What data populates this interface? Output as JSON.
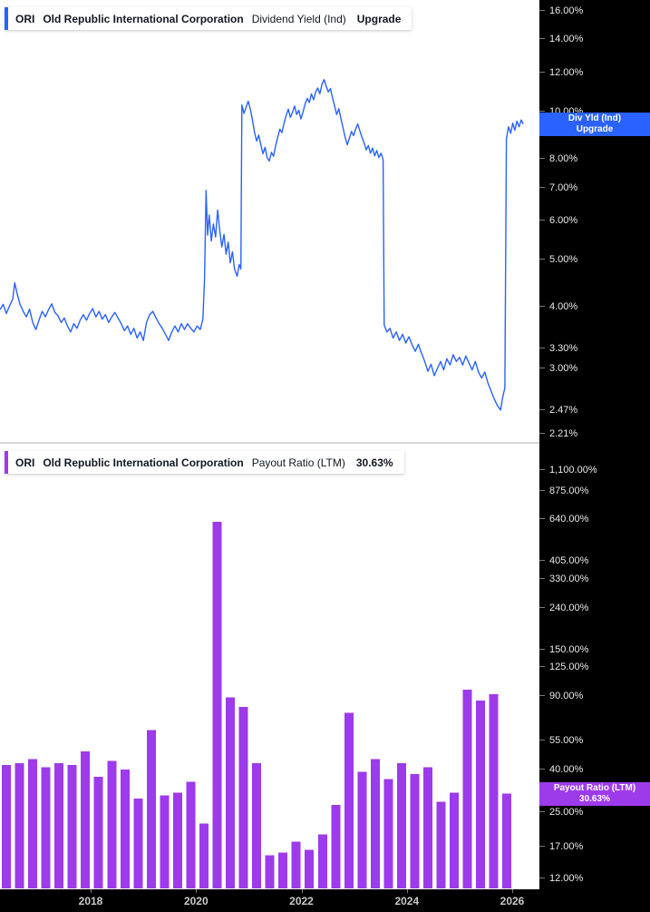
{
  "colors": {
    "line": "#2962FF",
    "bar": "#9D3BEB",
    "axis_bg": "#000000",
    "tick_text": "#E9E9E9",
    "year_text": "#C9C9C9",
    "background": "#FFFFFF"
  },
  "panels": [
    {
      "legend": {
        "ticker": "ORI",
        "company": "Old Republic International Corporation",
        "indicator": "Dividend Yield (Ind)",
        "value": "Upgrade"
      },
      "badge": {
        "line1": "Div Yld (Ind)",
        "line2": "Upgrade"
      }
    },
    {
      "legend": {
        "ticker": "ORI",
        "company": "Old Republic International Corporation",
        "indicator": "Payout Ratio (LTM)",
        "value": "30.63%"
      },
      "badge": {
        "line1": "Payout Ratio (LTM)",
        "line2": "30.63%"
      }
    }
  ],
  "x_axis": {
    "years": [
      {
        "v": 2018,
        "label": "2018"
      },
      {
        "v": 2020,
        "label": "2020"
      },
      {
        "v": 2022,
        "label": "2022"
      },
      {
        "v": 2024,
        "label": "2024"
      },
      {
        "v": 2026,
        "label": "2026"
      }
    ]
  },
  "chart_data": [
    {
      "type": "line",
      "title": "ORI Dividend Yield (Ind)",
      "ylabel": "Dividend Yield %",
      "y_scale": "log",
      "unit": "percent",
      "x_range": [
        2016.28,
        2026.22
      ],
      "y_ticks": [
        {
          "v": 16,
          "label": "16.00%"
        },
        {
          "v": 14,
          "label": "14.00%"
        },
        {
          "v": 12,
          "label": "12.00%"
        },
        {
          "v": 10,
          "label": "10.00%"
        },
        {
          "v": 8,
          "label": "8.00%"
        },
        {
          "v": 7,
          "label": "7.00%"
        },
        {
          "v": 6,
          "label": "6.00%"
        },
        {
          "v": 5,
          "label": "5.00%"
        },
        {
          "v": 4,
          "label": "4.00%"
        },
        {
          "v": 3.3,
          "label": "3.30%"
        },
        {
          "v": 3,
          "label": "3.00%"
        },
        {
          "v": 2.47,
          "label": "2.47%"
        },
        {
          "v": 2.21,
          "label": "2.21%"
        }
      ],
      "points": [
        [
          2016.28,
          3.95
        ],
        [
          2016.34,
          4.05
        ],
        [
          2016.4,
          3.88
        ],
        [
          2016.46,
          4.02
        ],
        [
          2016.52,
          4.15
        ],
        [
          2016.56,
          4.48
        ],
        [
          2016.6,
          4.28
        ],
        [
          2016.66,
          4.05
        ],
        [
          2016.72,
          3.92
        ],
        [
          2016.78,
          3.82
        ],
        [
          2016.84,
          3.96
        ],
        [
          2016.9,
          3.72
        ],
        [
          2016.96,
          3.6
        ],
        [
          2017.02,
          3.76
        ],
        [
          2017.08,
          3.92
        ],
        [
          2017.14,
          3.82
        ],
        [
          2017.2,
          3.95
        ],
        [
          2017.26,
          4.06
        ],
        [
          2017.32,
          3.9
        ],
        [
          2017.38,
          3.84
        ],
        [
          2017.44,
          3.72
        ],
        [
          2017.5,
          3.8
        ],
        [
          2017.56,
          3.66
        ],
        [
          2017.62,
          3.56
        ],
        [
          2017.68,
          3.7
        ],
        [
          2017.74,
          3.62
        ],
        [
          2017.8,
          3.76
        ],
        [
          2017.86,
          3.86
        ],
        [
          2017.92,
          3.76
        ],
        [
          2017.98,
          3.88
        ],
        [
          2018.04,
          3.97
        ],
        [
          2018.1,
          3.82
        ],
        [
          2018.16,
          3.92
        ],
        [
          2018.22,
          3.78
        ],
        [
          2018.28,
          3.86
        ],
        [
          2018.34,
          3.72
        ],
        [
          2018.4,
          3.82
        ],
        [
          2018.46,
          3.9
        ],
        [
          2018.52,
          3.8
        ],
        [
          2018.58,
          3.7
        ],
        [
          2018.64,
          3.58
        ],
        [
          2018.7,
          3.66
        ],
        [
          2018.76,
          3.52
        ],
        [
          2018.82,
          3.62
        ],
        [
          2018.88,
          3.46
        ],
        [
          2018.94,
          3.56
        ],
        [
          2019.0,
          3.42
        ],
        [
          2019.06,
          3.72
        ],
        [
          2019.12,
          3.86
        ],
        [
          2019.18,
          3.92
        ],
        [
          2019.24,
          3.8
        ],
        [
          2019.3,
          3.7
        ],
        [
          2019.36,
          3.62
        ],
        [
          2019.42,
          3.52
        ],
        [
          2019.48,
          3.42
        ],
        [
          2019.54,
          3.56
        ],
        [
          2019.6,
          3.66
        ],
        [
          2019.66,
          3.56
        ],
        [
          2019.72,
          3.7
        ],
        [
          2019.78,
          3.6
        ],
        [
          2019.84,
          3.7
        ],
        [
          2019.9,
          3.62
        ],
        [
          2019.96,
          3.56
        ],
        [
          2020.02,
          3.66
        ],
        [
          2020.08,
          3.6
        ],
        [
          2020.13,
          3.78
        ],
        [
          2020.16,
          4.55
        ],
        [
          2020.19,
          6.9
        ],
        [
          2020.22,
          5.6
        ],
        [
          2020.25,
          6.15
        ],
        [
          2020.29,
          5.45
        ],
        [
          2020.33,
          5.9
        ],
        [
          2020.37,
          5.55
        ],
        [
          2020.41,
          6.3
        ],
        [
          2020.45,
          5.72
        ],
        [
          2020.49,
          5.3
        ],
        [
          2020.53,
          5.62
        ],
        [
          2020.57,
          5.12
        ],
        [
          2020.61,
          5.42
        ],
        [
          2020.65,
          4.92
        ],
        [
          2020.69,
          5.18
        ],
        [
          2020.73,
          4.78
        ],
        [
          2020.78,
          4.62
        ],
        [
          2020.82,
          4.88
        ],
        [
          2020.85,
          4.78
        ],
        [
          2020.87,
          10.3
        ],
        [
          2020.91,
          9.9
        ],
        [
          2020.95,
          10.2
        ],
        [
          2020.99,
          10.48
        ],
        [
          2021.03,
          10.1
        ],
        [
          2021.07,
          9.62
        ],
        [
          2021.11,
          9.05
        ],
        [
          2021.15,
          8.7
        ],
        [
          2021.19,
          8.95
        ],
        [
          2021.23,
          8.55
        ],
        [
          2021.27,
          8.2
        ],
        [
          2021.31,
          8.45
        ],
        [
          2021.35,
          8.05
        ],
        [
          2021.39,
          7.92
        ],
        [
          2021.43,
          8.25
        ],
        [
          2021.47,
          8.1
        ],
        [
          2021.51,
          8.5
        ],
        [
          2021.55,
          8.85
        ],
        [
          2021.59,
          9.2
        ],
        [
          2021.63,
          9.05
        ],
        [
          2021.67,
          9.45
        ],
        [
          2021.71,
          9.8
        ],
        [
          2021.75,
          10.1
        ],
        [
          2021.79,
          9.72
        ],
        [
          2021.83,
          9.95
        ],
        [
          2021.87,
          10.25
        ],
        [
          2021.91,
          9.85
        ],
        [
          2021.95,
          10.05
        ],
        [
          2021.99,
          9.65
        ],
        [
          2022.03,
          9.95
        ],
        [
          2022.07,
          10.35
        ],
        [
          2022.11,
          10.62
        ],
        [
          2022.15,
          10.42
        ],
        [
          2022.19,
          10.85
        ],
        [
          2022.23,
          10.55
        ],
        [
          2022.27,
          10.95
        ],
        [
          2022.31,
          11.15
        ],
        [
          2022.35,
          10.85
        ],
        [
          2022.39,
          11.35
        ],
        [
          2022.43,
          11.6
        ],
        [
          2022.47,
          11.25
        ],
        [
          2022.51,
          10.95
        ],
        [
          2022.55,
          11.12
        ],
        [
          2022.59,
          10.65
        ],
        [
          2022.63,
          10.25
        ],
        [
          2022.67,
          9.85
        ],
        [
          2022.71,
          10.12
        ],
        [
          2022.75,
          9.65
        ],
        [
          2022.79,
          9.25
        ],
        [
          2022.83,
          8.85
        ],
        [
          2022.87,
          8.55
        ],
        [
          2022.91,
          8.82
        ],
        [
          2022.95,
          9.1
        ],
        [
          2022.99,
          8.92
        ],
        [
          2023.03,
          9.22
        ],
        [
          2023.07,
          9.42
        ],
        [
          2023.11,
          9.12
        ],
        [
          2023.15,
          8.85
        ],
        [
          2023.19,
          8.62
        ],
        [
          2023.23,
          8.35
        ],
        [
          2023.27,
          8.52
        ],
        [
          2023.31,
          8.22
        ],
        [
          2023.35,
          8.42
        ],
        [
          2023.39,
          8.12
        ],
        [
          2023.43,
          8.32
        ],
        [
          2023.47,
          8.05
        ],
        [
          2023.51,
          8.22
        ],
        [
          2023.55,
          7.98
        ],
        [
          2023.57,
          3.68
        ],
        [
          2023.62,
          3.56
        ],
        [
          2023.68,
          3.62
        ],
        [
          2023.74,
          3.46
        ],
        [
          2023.8,
          3.56
        ],
        [
          2023.86,
          3.42
        ],
        [
          2023.92,
          3.52
        ],
        [
          2023.98,
          3.38
        ],
        [
          2024.04,
          3.48
        ],
        [
          2024.1,
          3.35
        ],
        [
          2024.16,
          3.25
        ],
        [
          2024.22,
          3.36
        ],
        [
          2024.28,
          3.22
        ],
        [
          2024.34,
          3.1
        ],
        [
          2024.4,
          2.96
        ],
        [
          2024.46,
          3.06
        ],
        [
          2024.52,
          2.9
        ],
        [
          2024.58,
          3.0
        ],
        [
          2024.64,
          3.1
        ],
        [
          2024.7,
          2.98
        ],
        [
          2024.76,
          3.14
        ],
        [
          2024.82,
          3.05
        ],
        [
          2024.88,
          3.2
        ],
        [
          2024.94,
          3.1
        ],
        [
          2025.0,
          3.16
        ],
        [
          2025.06,
          3.05
        ],
        [
          2025.12,
          3.18
        ],
        [
          2025.18,
          3.08
        ],
        [
          2025.24,
          2.98
        ],
        [
          2025.3,
          3.1
        ],
        [
          2025.36,
          2.95
        ],
        [
          2025.42,
          2.87
        ],
        [
          2025.48,
          2.95
        ],
        [
          2025.54,
          2.8
        ],
        [
          2025.6,
          2.7
        ],
        [
          2025.66,
          2.6
        ],
        [
          2025.72,
          2.52
        ],
        [
          2025.78,
          2.47
        ],
        [
          2025.82,
          2.62
        ],
        [
          2025.86,
          2.74
        ],
        [
          2025.89,
          8.8
        ],
        [
          2025.93,
          9.3
        ],
        [
          2025.97,
          9.02
        ],
        [
          2026.01,
          9.46
        ],
        [
          2026.05,
          9.15
        ],
        [
          2026.09,
          9.55
        ],
        [
          2026.13,
          9.3
        ],
        [
          2026.17,
          9.6
        ],
        [
          2026.21,
          9.42
        ]
      ]
    },
    {
      "type": "bar",
      "title": "ORI Payout Ratio (LTM)",
      "ylabel": "Payout Ratio %",
      "y_scale": "log",
      "unit": "percent",
      "current_value": 30.63,
      "current_label": "30.63%",
      "x_start": 2016.4,
      "x_step": 0.25,
      "y_ticks": [
        {
          "v": 1100,
          "label": "1,100.00%"
        },
        {
          "v": 875,
          "label": "875.00%"
        },
        {
          "v": 640,
          "label": "640.00%"
        },
        {
          "v": 405,
          "label": "405.00%"
        },
        {
          "v": 330,
          "label": "330.00%"
        },
        {
          "v": 240,
          "label": "240.00%"
        },
        {
          "v": 150,
          "label": "150.00%"
        },
        {
          "v": 125,
          "label": "125.00%"
        },
        {
          "v": 90,
          "label": "90.00%"
        },
        {
          "v": 55,
          "label": "55.00%"
        },
        {
          "v": 40,
          "label": "40.00%"
        },
        {
          "v": 25,
          "label": "25.00%"
        },
        {
          "v": 17,
          "label": "17.00%"
        },
        {
          "v": 12,
          "label": "12.00%"
        }
      ],
      "values": [
        42,
        43,
        45,
        41,
        43,
        42,
        49,
        37,
        44,
        40,
        29,
        62,
        30,
        31,
        35,
        22,
        620,
        89,
        80,
        43,
        15.5,
        16,
        18,
        16.5,
        19.5,
        27,
        75,
        39,
        45,
        36,
        43,
        38,
        41,
        28,
        31,
        97,
        86,
        92,
        30.63
      ]
    }
  ]
}
